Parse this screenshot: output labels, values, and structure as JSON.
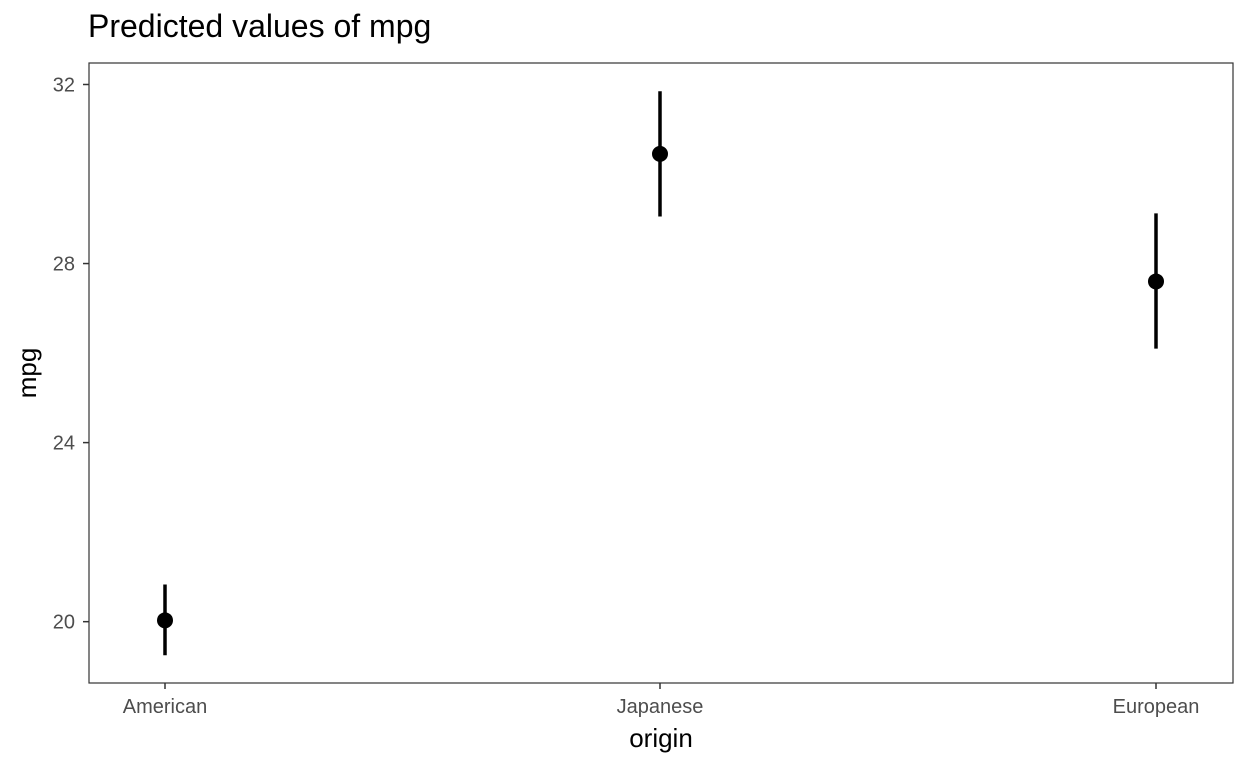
{
  "chart_data": {
    "type": "scatter",
    "title": "Predicted values of mpg",
    "xlabel": "origin",
    "ylabel": "mpg",
    "categories": [
      "American",
      "Japanese",
      "European"
    ],
    "series": [
      {
        "values": [
          20.03,
          30.45,
          27.6
        ],
        "ci_low": [
          19.25,
          29.05,
          26.1
        ],
        "ci_high": [
          20.83,
          31.85,
          29.12
        ]
      }
    ],
    "yticks": [
      20,
      24,
      28,
      32
    ],
    "ylim": [
      18.63,
      32.48
    ],
    "grid": false,
    "legend": "none",
    "colors": {
      "points": "#000000",
      "panel_border": "#333333",
      "tick_text": "#4d4d4d"
    }
  }
}
